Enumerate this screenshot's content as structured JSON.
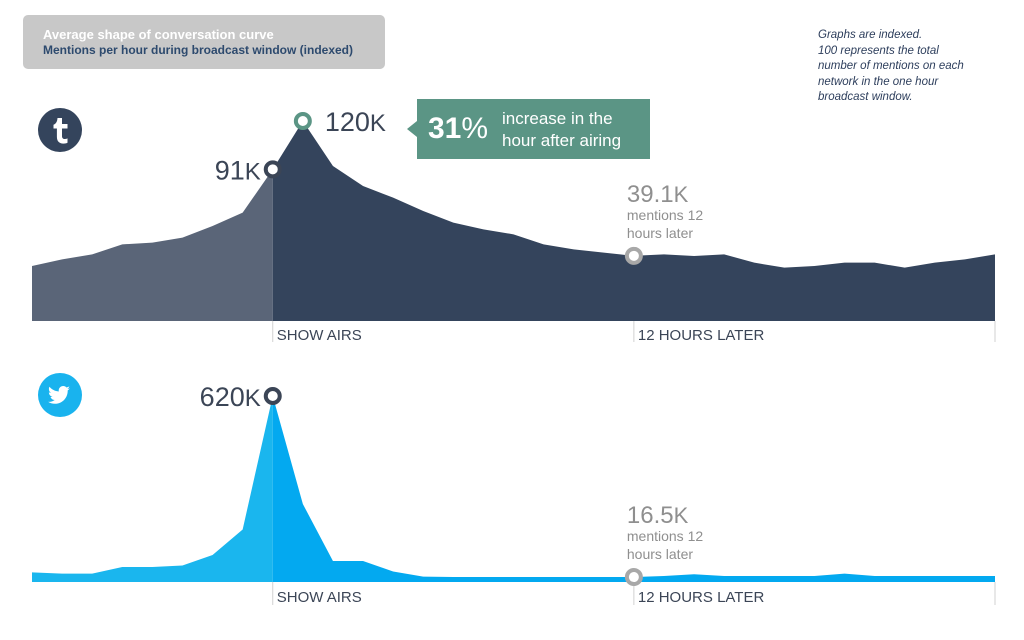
{
  "title": {
    "line1": "Average shape of conversation curve",
    "line2": "Mentions per hour during broadcast window (indexed)"
  },
  "note": [
    "Graphs are indexed.",
    "100 represents the total",
    "number of mentions on each",
    "network in the one hour",
    "broadcast window."
  ],
  "colors": {
    "tumblr_before": "#5a6578",
    "tumblr_after": "#34445c",
    "twitter_before": "#1ab6ee",
    "twitter_after": "#03a9f0",
    "callout_bg": "#5b9585",
    "marker_gray": "#a8a8a8",
    "axis_line": "#d0d0d0",
    "label_dark": "#3b4556",
    "label_gray": "#8f8f8f"
  },
  "icons": {
    "tumblr": "tumblr-logo-icon",
    "twitter": "twitter-bird-icon"
  },
  "callout": {
    "percent": "31",
    "percent_unit": "%",
    "line1": "increase in the",
    "line2": "hour after airing"
  },
  "chart_data": [
    {
      "type": "area",
      "network": "tumblr",
      "x": [
        -8,
        -7,
        -6,
        -5,
        -4,
        -3,
        -2,
        -1,
        0,
        1,
        2,
        3,
        4,
        5,
        6,
        7,
        8,
        9,
        10,
        11,
        12,
        13,
        14,
        15,
        16,
        17,
        18,
        19,
        20,
        21,
        22,
        23,
        24
      ],
      "y": [
        33,
        37,
        40,
        46,
        47,
        50,
        57,
        65,
        91,
        120,
        93,
        81,
        74,
        66,
        59,
        55,
        52,
        46,
        43,
        41,
        39.1,
        40,
        39,
        40,
        35,
        32,
        33,
        35,
        35,
        32,
        35,
        37,
        40
      ],
      "show_airs_x": 0,
      "later_x": 12,
      "point_labels": [
        {
          "x": 0,
          "value": "91",
          "unit": "K"
        },
        {
          "x": 1,
          "value": "120",
          "unit": "K"
        },
        {
          "x": 12,
          "value": "39.1",
          "unit": "K",
          "sub1": "mentions 12",
          "sub2": "hours later"
        }
      ],
      "axis_labels": [
        "SHOW AIRS",
        "12 HOURS LATER"
      ]
    },
    {
      "type": "area",
      "network": "twitter",
      "x": [
        -8,
        -7,
        -6,
        -5,
        -4,
        -3,
        -2,
        -1,
        0,
        1,
        2,
        3,
        4,
        5,
        6,
        7,
        8,
        9,
        10,
        11,
        12,
        13,
        14,
        15,
        16,
        17,
        18,
        19,
        20,
        21,
        22,
        23,
        24
      ],
      "y": [
        32,
        28,
        28,
        50,
        50,
        55,
        90,
        175,
        620,
        260,
        70,
        70,
        35,
        18,
        16.5,
        16.5,
        16.5,
        16.5,
        16.5,
        16.5,
        16.5,
        20,
        26,
        20,
        20,
        20,
        20,
        28,
        20,
        20,
        20,
        20,
        20
      ],
      "show_airs_x": 0,
      "later_x": 12,
      "point_labels": [
        {
          "x": 0,
          "value": "620",
          "unit": "K"
        },
        {
          "x": 12,
          "value": "16.5",
          "unit": "K",
          "sub1": "mentions 12",
          "sub2": "hours later"
        }
      ],
      "axis_labels": [
        "SHOW AIRS",
        "12 HOURS LATER"
      ]
    }
  ]
}
